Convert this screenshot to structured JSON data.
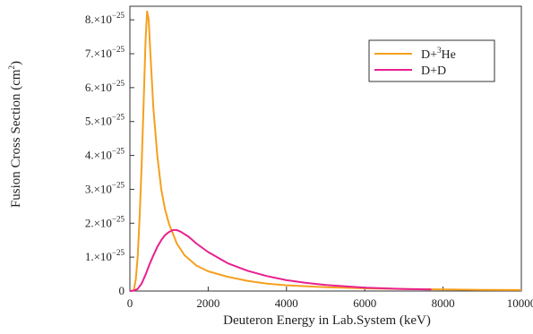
{
  "chart_data": {
    "type": "line",
    "xlabel": "Deuteron Energy in Lab.System (keV)",
    "ylabel": "Fusion Cross Section (cm",
    "ylabel_sup": "2",
    "ylabel_end": ")",
    "xlim": [
      0,
      10000
    ],
    "ylim": [
      0,
      8.4e-25
    ],
    "x_ticks": [
      {
        "value": 0,
        "label": "0"
      },
      {
        "value": 2000,
        "label": "2000"
      },
      {
        "value": 4000,
        "label": "4000"
      },
      {
        "value": 6000,
        "label": "6000"
      },
      {
        "value": 8000,
        "label": "8000"
      },
      {
        "value": 10000,
        "label": "10000"
      }
    ],
    "y_ticks": [
      {
        "value": 0,
        "label": "0",
        "exp": ""
      },
      {
        "value": 1e-25,
        "label": "1.×10",
        "exp": "−25"
      },
      {
        "value": 2e-25,
        "label": "2.×10",
        "exp": "−25"
      },
      {
        "value": 3e-25,
        "label": "3.×10",
        "exp": "−25"
      },
      {
        "value": 4e-25,
        "label": "4.×10",
        "exp": "−25"
      },
      {
        "value": 5e-25,
        "label": "5.×10",
        "exp": "−25"
      },
      {
        "value": 6e-25,
        "label": "6.×10",
        "exp": "−25"
      },
      {
        "value": 7e-25,
        "label": "7.×10",
        "exp": "−25"
      },
      {
        "value": 8e-25,
        "label": "8.×10",
        "exp": "−25"
      }
    ],
    "legend_position": "top-right",
    "series": [
      {
        "name": "D+³He",
        "name_prefix": "D+",
        "name_sup": "3",
        "name_suffix": "He",
        "color": "#f5a01e",
        "points": [
          [
            0,
            0
          ],
          [
            100,
            2e-27
          ],
          [
            150,
            3.5e-26
          ],
          [
            200,
            1e-25
          ],
          [
            250,
            2.2e-25
          ],
          [
            300,
            3.7e-25
          ],
          [
            350,
            5.5e-25
          ],
          [
            400,
            7.4e-25
          ],
          [
            440,
            8.25e-25
          ],
          [
            480,
            8e-25
          ],
          [
            520,
            7.1e-25
          ],
          [
            600,
            5.4e-25
          ],
          [
            700,
            4e-25
          ],
          [
            800,
            3e-25
          ],
          [
            900,
            2.4e-25
          ],
          [
            1000,
            1.98e-25
          ],
          [
            1200,
            1.4e-25
          ],
          [
            1400,
            1.05e-25
          ],
          [
            1700,
            7.5e-26
          ],
          [
            2000,
            5.8e-26
          ],
          [
            2500,
            4.2e-26
          ],
          [
            3000,
            3e-26
          ],
          [
            3500,
            2.2e-26
          ],
          [
            4000,
            1.7e-26
          ],
          [
            5000,
            1.1e-26
          ],
          [
            6000,
            8e-27
          ],
          [
            7000,
            6e-27
          ],
          [
            8000,
            4.5e-27
          ],
          [
            9000,
            3.5e-27
          ],
          [
            10000,
            3e-27
          ]
        ]
      },
      {
        "name": "D+D",
        "color": "#e8208f",
        "points": [
          [
            0,
            0
          ],
          [
            100,
            1e-27
          ],
          [
            200,
            6e-27
          ],
          [
            300,
            2.2e-26
          ],
          [
            400,
            4.8e-26
          ],
          [
            500,
            7.8e-26
          ],
          [
            600,
            1.05e-25
          ],
          [
            700,
            1.3e-25
          ],
          [
            800,
            1.5e-25
          ],
          [
            900,
            1.65e-25
          ],
          [
            1000,
            1.74e-25
          ],
          [
            1100,
            1.8e-25
          ],
          [
            1200,
            1.8e-25
          ],
          [
            1300,
            1.75e-25
          ],
          [
            1500,
            1.6e-25
          ],
          [
            1700,
            1.4e-25
          ],
          [
            2000,
            1.15e-25
          ],
          [
            2500,
            8.2e-26
          ],
          [
            3000,
            6e-26
          ],
          [
            3500,
            4.4e-26
          ],
          [
            4000,
            3.2e-26
          ],
          [
            4500,
            2.4e-26
          ],
          [
            5000,
            1.8e-26
          ],
          [
            5500,
            1.4e-26
          ],
          [
            6000,
            1e-26
          ],
          [
            6500,
            8e-27
          ],
          [
            7000,
            6e-27
          ],
          [
            7500,
            5e-27
          ],
          [
            7700,
            4.5e-27
          ]
        ]
      }
    ]
  }
}
